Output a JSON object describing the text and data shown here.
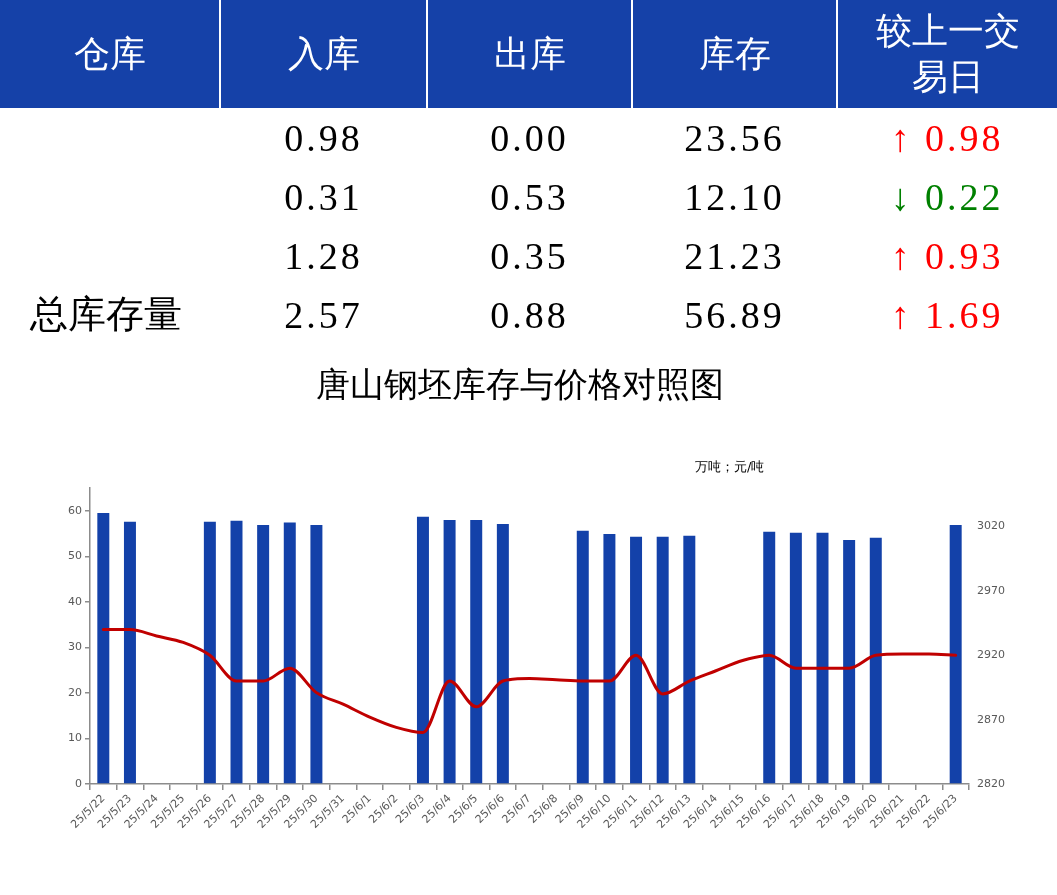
{
  "chart_data": [
    {
      "type": "other",
      "ylabel": "仓库",
      "categories": [
        "入库",
        "出库",
        "库存",
        "较上一交易日"
      ],
      "series": [
        {
          "values": [
            0.98,
            0,
            23.56,
            0.98
          ],
          "value_labels": [
            "0.98",
            "0.00",
            "23.56",
            "↑ 0.98"
          ],
          "colors": [
            "#000000",
            "#000000",
            "#000000",
            "#ff0000"
          ]
        },
        {
          "values": [
            0.31,
            0.53,
            12.1,
            0.22
          ],
          "value_labels": [
            "0.31",
            "0.53",
            "12.10",
            "↓ 0.22"
          ],
          "colors": [
            "#000000",
            "#000000",
            "#000000",
            "#008000"
          ]
        },
        {
          "values": [
            1.28,
            0.35,
            21.23,
            0.93
          ],
          "value_labels": [
            "1.28",
            "0.35",
            "21.23",
            "↑ 0.93"
          ],
          "colors": [
            "#000000",
            "#000000",
            "#000000",
            "#ff0000"
          ]
        },
        {
          "name": "总库存量",
          "values": [
            2.57,
            0.88,
            56.89,
            1.69
          ],
          "value_labels": [
            "2.57",
            "0.88",
            "56.89",
            "↑ 1.69"
          ],
          "colors": [
            "#000000",
            "#000000",
            "#000000",
            "#ff0000"
          ]
        }
      ]
    },
    {
      "type": "bar",
      "title": "唐山钢坯库存与价格对照图",
      "annotations": [
        "万吨；元/吨"
      ],
      "categories": [
        "25/5/22",
        "25/5/23",
        "25/5/24",
        "25/5/25",
        "25/5/26",
        "25/5/27",
        "25/5/28",
        "25/5/29",
        "25/5/30",
        "25/5/31",
        "25/6/1",
        "25/6/2",
        "25/6/3",
        "25/6/4",
        "25/6/5",
        "25/6/6",
        "25/6/7",
        "25/6/8",
        "25/6/9",
        "25/6/10",
        "25/6/11",
        "25/6/12",
        "25/6/13",
        "25/6/14",
        "25/6/15",
        "25/6/16",
        "25/6/17",
        "25/6/18",
        "25/6/19",
        "25/6/20",
        "25/6/21",
        "25/6/22",
        "25/6/23"
      ],
      "series": [
        {
          "type": "bar",
          "color": "#1341a9",
          "values": [
            59.5,
            57.6,
            null,
            null,
            57.6,
            57.8,
            56.9,
            57.4,
            56.9,
            null,
            null,
            null,
            58.7,
            58.0,
            58.0,
            57.1,
            null,
            null,
            55.6,
            54.9,
            54.3,
            54.3,
            54.5,
            null,
            null,
            55.4,
            55.2,
            55.2,
            53.6,
            54.1,
            null,
            null,
            56.9
          ]
        },
        {
          "type": "line",
          "axis": "y2",
          "color": "#c00000",
          "values": [
            2940,
            2940,
            2935,
            2930,
            2920,
            2900,
            2900,
            2910,
            2891,
            2882,
            2872,
            2864,
            2860,
            2900,
            2880,
            2900,
            2902,
            2901,
            2900,
            2900,
            2920,
            2890,
            2900,
            2908,
            2916,
            2920,
            2910,
            2910,
            2910,
            2920,
            2921,
            2921,
            2920
          ]
        }
      ],
      "ylim": [
        0,
        65
      ],
      "yticks": [
        0,
        10,
        20,
        30,
        40,
        50,
        60
      ],
      "y2lim": [
        2820,
        3050
      ],
      "y2ticks": [
        2820,
        2870,
        2920,
        2970,
        3020
      ],
      "grid": false,
      "legend": false,
      "marker": "none",
      "line_style": "solid"
    }
  ]
}
